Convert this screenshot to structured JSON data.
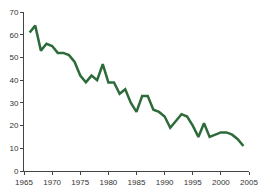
{
  "chart_data": {
    "type": "line",
    "color": "#2e6b3a",
    "grid": false,
    "x": [
      1966,
      1967,
      1968,
      1969,
      1970,
      1971,
      1972,
      1973,
      1974,
      1975,
      1976,
      1977,
      1978,
      1979,
      1980,
      1981,
      1982,
      1983,
      1984,
      1985,
      1986,
      1987,
      1988,
      1989,
      1990,
      1991,
      1992,
      1993,
      1994,
      1995,
      1996,
      1997,
      1998,
      1999,
      2000,
      2001,
      2002,
      2003,
      2004
    ],
    "values": [
      61,
      64,
      53,
      56,
      55,
      52,
      52,
      51,
      48,
      42,
      39,
      42,
      40,
      47,
      39,
      39,
      34,
      36,
      30,
      26,
      33,
      33,
      27,
      26,
      24,
      19,
      22,
      25,
      24,
      20,
      15,
      21,
      15,
      16,
      17,
      17,
      16,
      14,
      11
    ],
    "xlim": [
      1965,
      2005
    ],
    "xticks": [
      1965,
      1970,
      1975,
      1980,
      1985,
      1990,
      1995,
      2000,
      2005
    ],
    "ylim": [
      0,
      70
    ],
    "yticks": [
      0,
      10,
      20,
      30,
      40,
      50,
      60,
      70
    ]
  }
}
